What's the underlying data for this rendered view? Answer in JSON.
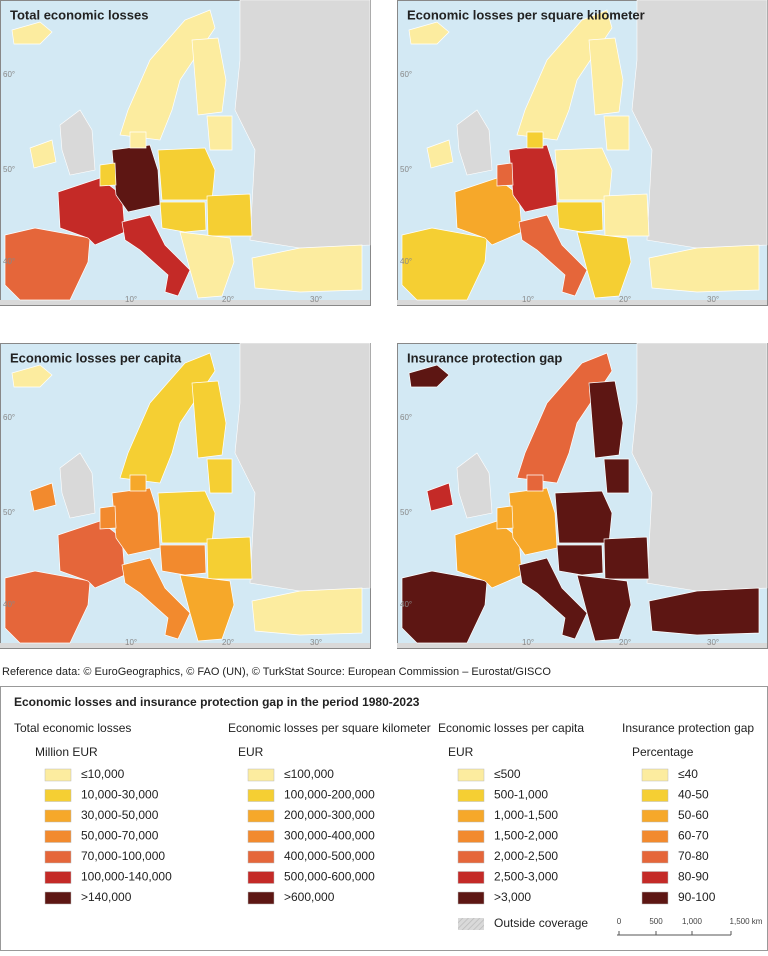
{
  "maps": [
    {
      "title": "Total economic losses"
    },
    {
      "title": "Economic losses per square kilometer"
    },
    {
      "title": "Economic losses per capita"
    },
    {
      "title": "Insurance protection gap"
    }
  ],
  "graticule_labels": [
    "60°",
    "50°",
    "40°",
    "10°",
    "20°",
    "30°"
  ],
  "source": "Reference data: © EuroGeographics, © FAO (UN), © TurkStat Source: European Commission – Eurostat/GISCO",
  "legend": {
    "title": "Economic losses and insurance protection gap in the period 1980-2023",
    "colors": [
      "#fcec9f",
      "#f5cf33",
      "#f6a82a",
      "#f28a2e",
      "#e5663a",
      "#c42a27",
      "#5d1613"
    ],
    "groups": [
      {
        "title": "Total economic losses",
        "unit": "Million EUR",
        "items": [
          "≤10,000",
          "10,000-30,000",
          "30,000-50,000",
          "50,000-70,000",
          "70,000-100,000",
          "100,000-140,000",
          ">140,000"
        ]
      },
      {
        "title": "Economic losses per square kilometer",
        "unit": "EUR",
        "items": [
          "≤100,000",
          "100,000-200,000",
          "200,000-300,000",
          "300,000-400,000",
          "400,000-500,000",
          "500,000-600,000",
          ">600,000"
        ]
      },
      {
        "title": "Economic losses per capita",
        "unit": "EUR",
        "items": [
          "≤500",
          "500-1,000",
          "1,000-1,500",
          "1,500-2,000",
          "2,000-2,500",
          "2,500-3,000",
          ">3,000"
        ]
      },
      {
        "title": "Insurance protection gap",
        "unit": "Percentage",
        "items": [
          "≤40",
          "40-50",
          "50-60",
          "60-70",
          "70-80",
          "80-90",
          "90-100"
        ]
      }
    ],
    "outside": "Outside coverage",
    "scale": [
      "0",
      "500",
      "1,000",
      "1,500 km"
    ]
  }
}
